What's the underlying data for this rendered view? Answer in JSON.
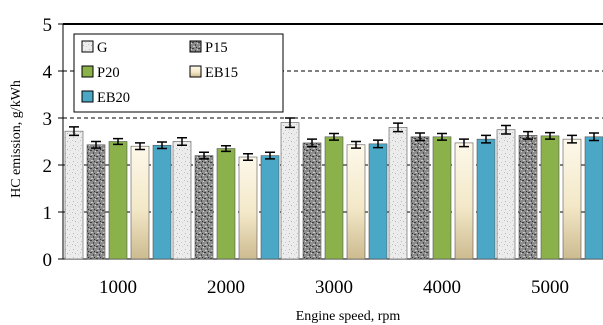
{
  "chart_data": {
    "type": "bar",
    "title": "",
    "xlabel": "Engine speed, rpm",
    "ylabel": "HC emission, g/kWh",
    "ylim": [
      0,
      5
    ],
    "yticks": [
      "0",
      "1",
      "2",
      "3",
      "4",
      "5"
    ],
    "grid": true,
    "legend_position": "top-left",
    "categories": [
      "1000",
      "2000",
      "3000",
      "4000",
      "5000"
    ],
    "series": [
      {
        "name": "G",
        "color": "#e4e4e4",
        "pattern": "light-speckle",
        "values": [
          2.72,
          2.5,
          2.9,
          2.8,
          2.75
        ],
        "errors": [
          0.09,
          0.08,
          0.1,
          0.09,
          0.09
        ]
      },
      {
        "name": "P15",
        "color": "#8a8a8a",
        "pattern": "dark-speckle",
        "values": [
          2.43,
          2.2,
          2.47,
          2.6,
          2.63
        ],
        "errors": [
          0.07,
          0.07,
          0.08,
          0.08,
          0.08
        ]
      },
      {
        "name": "P20",
        "color": "#8bb14a",
        "pattern": "solid",
        "values": [
          2.5,
          2.35,
          2.6,
          2.6,
          2.62
        ],
        "errors": [
          0.06,
          0.06,
          0.07,
          0.07,
          0.07
        ]
      },
      {
        "name": "EB15",
        "color": "#f3e6bf",
        "pattern": "cream-gradient",
        "values": [
          2.4,
          2.17,
          2.43,
          2.47,
          2.55
        ],
        "errors": [
          0.07,
          0.07,
          0.07,
          0.08,
          0.08
        ]
      },
      {
        "name": "EB20",
        "color": "#4ba7c6",
        "pattern": "solid",
        "values": [
          2.42,
          2.2,
          2.45,
          2.55,
          2.6
        ],
        "errors": [
          0.07,
          0.07,
          0.08,
          0.08,
          0.08
        ]
      }
    ]
  }
}
